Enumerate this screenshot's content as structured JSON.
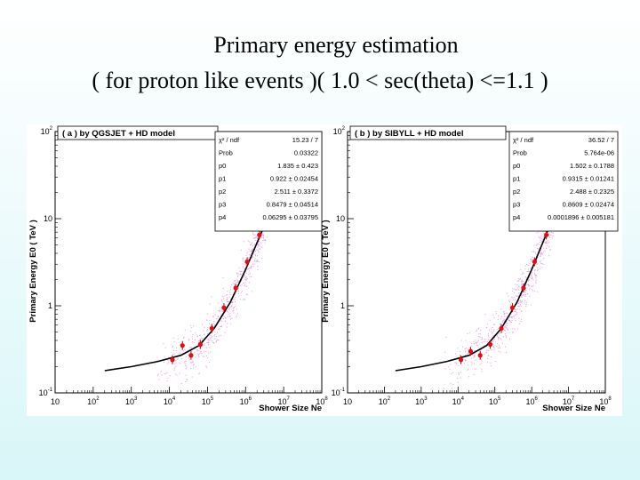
{
  "slide": {
    "title_line1": "Primary energy estimation",
    "title_line2": "( for proton like events )( 1.0 < sec(theta) <=1.1 )"
  },
  "chart_data": [
    {
      "type": "scatter",
      "title": "( a ) by QGSJET + HD model",
      "ylabel": "Primary Energy E0   ( TeV )",
      "xlabel": "Shower Size Ne",
      "x_scale": "log",
      "y_scale": "log",
      "xlim": [
        10,
        100000000
      ],
      "ylim": [
        0.1,
        100
      ],
      "x_ticks": [
        {
          "base": "10",
          "exp": ""
        },
        {
          "base": "10",
          "exp": "2"
        },
        {
          "base": "10",
          "exp": "3"
        },
        {
          "base": "10",
          "exp": "4"
        },
        {
          "base": "10",
          "exp": "5"
        },
        {
          "base": "10",
          "exp": "6"
        },
        {
          "base": "10",
          "exp": "7"
        },
        {
          "base": "10",
          "exp": "8"
        }
      ],
      "y_ticks": [
        {
          "base": "10",
          "exp": "-1"
        },
        {
          "base": "1",
          "exp": ""
        },
        {
          "base": "10",
          "exp": ""
        },
        {
          "base": "10",
          "exp": "2"
        }
      ],
      "stats": [
        {
          "label": "χ² / ndf",
          "value": "15.23 / 7"
        },
        {
          "label": "Prob",
          "value": "0.03322"
        },
        {
          "label": "p0",
          "value": "1.835 ± 0.423"
        },
        {
          "label": "p1",
          "value": "0.922 ± 0.02454"
        },
        {
          "label": "p2",
          "value": "2.511 ± 0.3372"
        },
        {
          "label": "p3",
          "value": "0.8479 ± 0.04514"
        },
        {
          "label": "p4",
          "value": "0.06295 ± 0.03795"
        }
      ],
      "points": [
        {
          "x": 12000,
          "y": 0.24
        },
        {
          "x": 22000,
          "y": 0.35
        },
        {
          "x": 37000,
          "y": 0.27
        },
        {
          "x": 65000,
          "y": 0.36
        },
        {
          "x": 130000,
          "y": 0.55
        },
        {
          "x": 270000,
          "y": 0.95
        },
        {
          "x": 550000,
          "y": 1.6
        },
        {
          "x": 1100000,
          "y": 3.2
        },
        {
          "x": 2300000,
          "y": 6.5
        },
        {
          "x": 4500000,
          "y": 15
        },
        {
          "x": 9000000,
          "y": 35
        }
      ],
      "fit_curve": [
        {
          "x": 200,
          "y": 0.18
        },
        {
          "x": 1000,
          "y": 0.2
        },
        {
          "x": 5000,
          "y": 0.23
        },
        {
          "x": 20000,
          "y": 0.27
        },
        {
          "x": 60000,
          "y": 0.35
        },
        {
          "x": 150000,
          "y": 0.55
        },
        {
          "x": 400000,
          "y": 1.1
        },
        {
          "x": 1000000,
          "y": 2.6
        },
        {
          "x": 3000000,
          "y": 8
        },
        {
          "x": 10000000,
          "y": 40
        }
      ]
    },
    {
      "type": "scatter",
      "title": "( b )  by SIBYLL + HD model",
      "ylabel": "Primary Energy E0   ( TeV )",
      "xlabel": "Shower Size Ne",
      "x_scale": "log",
      "y_scale": "log",
      "xlim": [
        10,
        100000000
      ],
      "ylim": [
        0.1,
        100
      ],
      "x_ticks": [
        {
          "base": "10",
          "exp": ""
        },
        {
          "base": "10",
          "exp": "2"
        },
        {
          "base": "10",
          "exp": "3"
        },
        {
          "base": "10",
          "exp": "4"
        },
        {
          "base": "10",
          "exp": "5"
        },
        {
          "base": "10",
          "exp": "6"
        },
        {
          "base": "10",
          "exp": "7"
        },
        {
          "base": "10",
          "exp": "8"
        }
      ],
      "y_ticks": [
        {
          "base": "10",
          "exp": "-1"
        },
        {
          "base": "1",
          "exp": ""
        },
        {
          "base": "10",
          "exp": ""
        },
        {
          "base": "10",
          "exp": "2"
        }
      ],
      "stats": [
        {
          "label": "χ² / ndf",
          "value": "36.52 / 7"
        },
        {
          "label": "Prob",
          "value": "5.764e-06"
        },
        {
          "label": "p0",
          "value": "1.502 ± 0.1788"
        },
        {
          "label": "p1",
          "value": "0.9315 ± 0.01241"
        },
        {
          "label": "p2",
          "value": "2.488 ± 0.2325"
        },
        {
          "label": "p3",
          "value": "0.8609 ± 0.02474"
        },
        {
          "label": "p4",
          "value": "0.0001896 ± 0.005181"
        }
      ],
      "points": [
        {
          "x": 12000,
          "y": 0.24
        },
        {
          "x": 22000,
          "y": 0.3
        },
        {
          "x": 40000,
          "y": 0.27
        },
        {
          "x": 75000,
          "y": 0.36
        },
        {
          "x": 150000,
          "y": 0.55
        },
        {
          "x": 300000,
          "y": 0.95
        },
        {
          "x": 600000,
          "y": 1.6
        },
        {
          "x": 1200000,
          "y": 3.2
        },
        {
          "x": 2500000,
          "y": 6.5
        },
        {
          "x": 5000000,
          "y": 15
        },
        {
          "x": 10000000,
          "y": 35
        }
      ],
      "fit_curve": [
        {
          "x": 200,
          "y": 0.18
        },
        {
          "x": 1000,
          "y": 0.2
        },
        {
          "x": 5000,
          "y": 0.23
        },
        {
          "x": 20000,
          "y": 0.27
        },
        {
          "x": 60000,
          "y": 0.35
        },
        {
          "x": 150000,
          "y": 0.55
        },
        {
          "x": 400000,
          "y": 1.1
        },
        {
          "x": 1000000,
          "y": 2.6
        },
        {
          "x": 3000000,
          "y": 8
        },
        {
          "x": 10000000,
          "y": 40
        }
      ]
    }
  ]
}
